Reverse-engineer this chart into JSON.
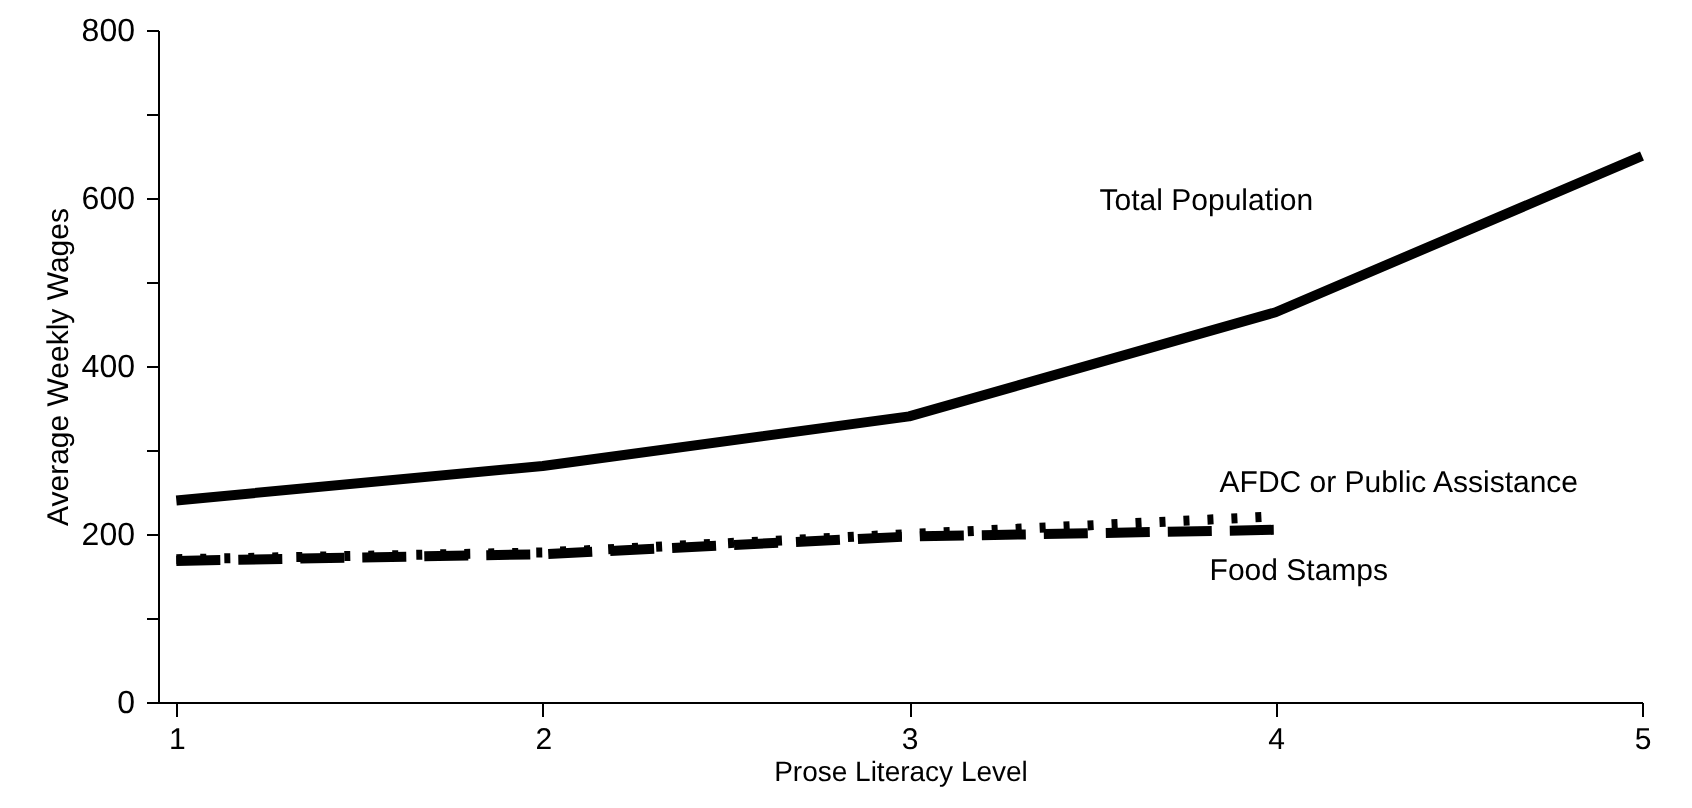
{
  "chart_data": {
    "type": "line",
    "xlabel": "Prose Literacy Level",
    "ylabel": "Average Weekly Wages",
    "x": [
      1,
      2,
      3,
      4,
      5
    ],
    "series": [
      {
        "name": "Total Population",
        "color": "#000000",
        "line_style": "solid",
        "values": [
          240,
          281,
          340,
          464,
          650
        ]
      },
      {
        "name": "AFDC or Public Assistance",
        "color": "#000000",
        "line_style": "dotted",
        "x": [
          1,
          2,
          3,
          4
        ],
        "values": [
          170,
          178,
          200,
          221
        ]
      },
      {
        "name": "Food Stamps",
        "color": "#000000",
        "line_style": "dashed",
        "x": [
          1,
          2,
          3,
          4
        ],
        "values": [
          168,
          176,
          197,
          205
        ]
      }
    ],
    "xlim": [
      0.95,
      5
    ],
    "xticks": [
      1,
      2,
      3,
      4,
      5
    ],
    "ylim": [
      0,
      800
    ],
    "yticks": [
      0,
      {
        "value": 100,
        "label": null
      },
      200,
      {
        "value": 300,
        "label": null
      },
      400,
      {
        "value": 500,
        "label": null
      },
      600,
      {
        "value": 700,
        "label": null
      },
      800
    ],
    "grid": false,
    "marker": "none"
  }
}
